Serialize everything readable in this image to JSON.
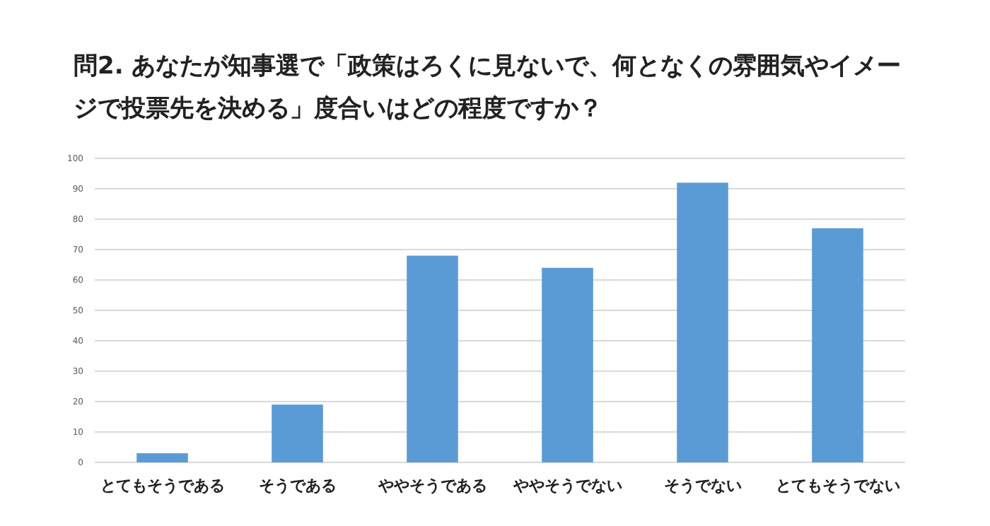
{
  "chart_data": {
    "type": "bar",
    "title": "問2. あなたが知事選で「政策はろくに見ないで、何となくの雰囲気やイメージで投票先を決める」度合いはどの程度ですか？",
    "categories": [
      "とてもそうである",
      "そうである",
      "ややそうである",
      "ややそうでない",
      "そうでない",
      "とてもそうでない"
    ],
    "values": [
      3,
      19,
      68,
      64,
      92,
      77
    ],
    "color": "#5b9bd5",
    "ylim": [
      0,
      100
    ],
    "yticks": [
      0,
      10,
      20,
      30,
      40,
      50,
      60,
      70,
      80,
      90,
      100
    ],
    "grid": "y"
  }
}
